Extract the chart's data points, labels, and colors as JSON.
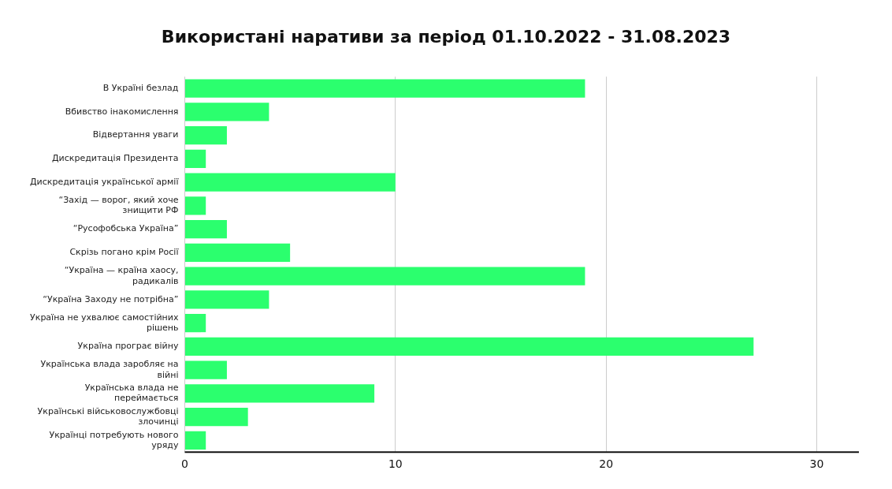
{
  "chart_data": {
    "type": "bar",
    "orientation": "horizontal",
    "title": "Використані наративи за період 01.10.2022 - 31.08.2023",
    "categories": [
      "В Україні безлад",
      "Вбивство інакомислення",
      "Відвертання уваги",
      "Дискредитація Президента",
      "Дискредитація української армії",
      "“Захід — ворог, який хоче знищити РФ",
      "“Русофобська Україна”",
      "Скрізь погано крім Росії",
      "“Україна — країна хаосу, радикалів",
      "“Україна Заходу не потрібна”",
      "Україна не ухвалює самостійних рішень",
      "Україна програє війну",
      "Українська влада заробляє на війні",
      "Українська влада не переймається",
      "Українські військовослужбовці злочинці",
      "Українці потребують нового уряду"
    ],
    "values": [
      19,
      4,
      2,
      1,
      10,
      1,
      2,
      5,
      19,
      4,
      1,
      27,
      2,
      9,
      3,
      1
    ],
    "color": "#2bff6e",
    "xlim": [
      0,
      32
    ],
    "xticks": [
      0,
      10,
      20,
      30
    ],
    "grid": "x",
    "legend": false
  }
}
